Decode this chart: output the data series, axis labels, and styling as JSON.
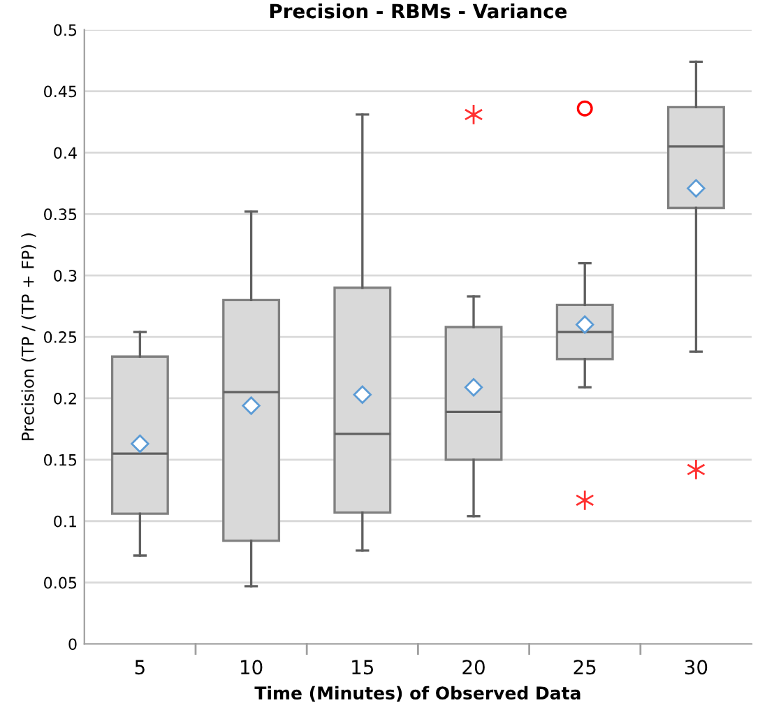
{
  "chart_data": {
    "type": "box",
    "title": "Precision - RBMs - Variance",
    "xlabel": "Time (Minutes) of Observed Data",
    "ylabel": "Precision (TP / (TP + FP) )",
    "categories": [
      "5",
      "10",
      "15",
      "20",
      "25",
      "30"
    ],
    "boxes": [
      {
        "low": 0.072,
        "q1": 0.106,
        "median": 0.155,
        "q3": 0.234,
        "high": 0.254,
        "mean": 0.163
      },
      {
        "low": 0.047,
        "q1": 0.084,
        "median": 0.205,
        "q3": 0.28,
        "high": 0.352,
        "mean": 0.194
      },
      {
        "low": 0.076,
        "q1": 0.107,
        "median": 0.171,
        "q3": 0.29,
        "high": 0.431,
        "mean": 0.203
      },
      {
        "low": 0.104,
        "q1": 0.15,
        "median": 0.189,
        "q3": 0.258,
        "high": 0.283,
        "mean": 0.209,
        "outliers": [
          0.431
        ]
      },
      {
        "low": 0.209,
        "q1": 0.232,
        "median": 0.254,
        "q3": 0.276,
        "high": 0.31,
        "mean": 0.26,
        "outliers": [
          0.117
        ]
      },
      {
        "low": 0.238,
        "q1": 0.355,
        "median": 0.405,
        "q3": 0.437,
        "high": 0.474,
        "mean": 0.371,
        "outliers": [
          0.142
        ]
      }
    ],
    "color": "#d9d9d9",
    "series": [
      {
        "type": "scatter",
        "x": [
          "25"
        ],
        "values": [
          0.436
        ],
        "color": "#ff0000",
        "marker": "circle"
      }
    ],
    "ylim": [
      0,
      0.5
    ],
    "yticks": [
      0,
      0.05,
      0.1,
      0.15,
      0.2,
      0.25,
      0.3,
      0.35,
      0.4,
      0.45,
      0.5
    ],
    "grid": "y"
  }
}
